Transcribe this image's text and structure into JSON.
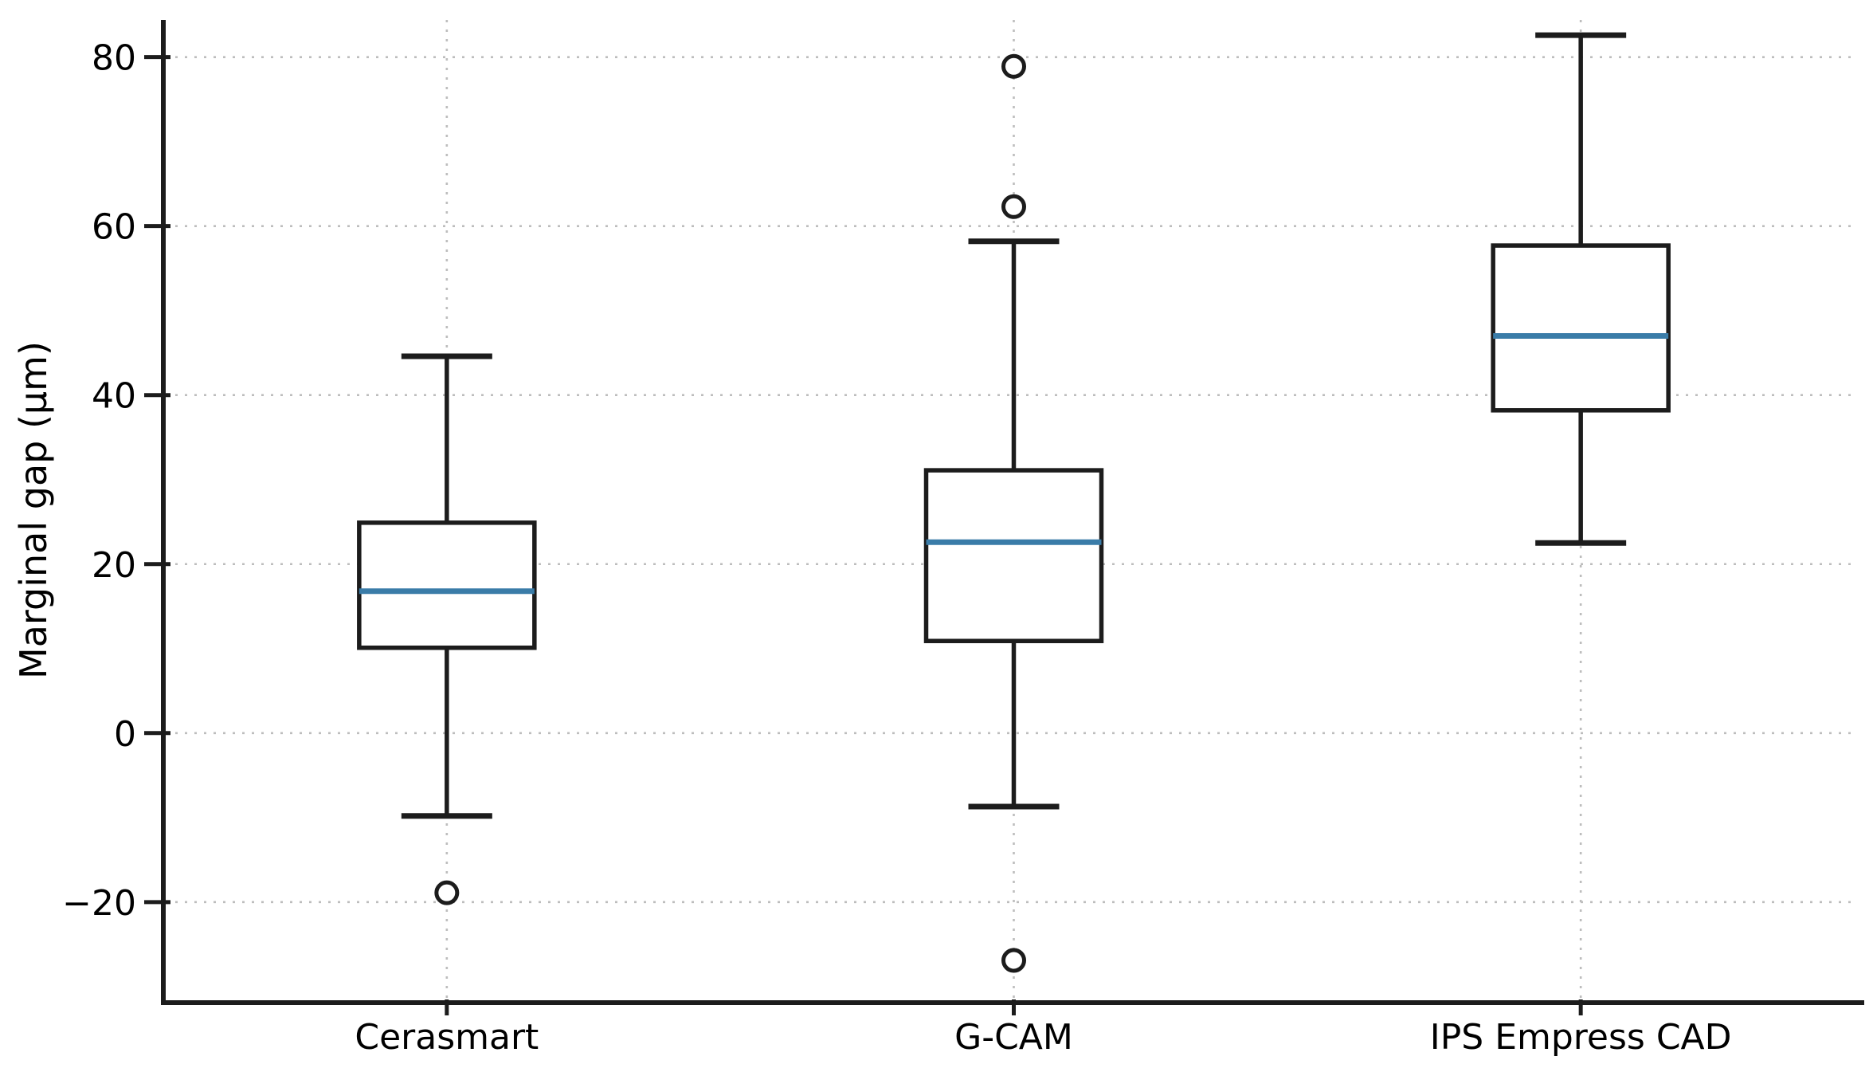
{
  "figure": {
    "background": "#ffffff"
  },
  "chart_data": {
    "type": "box",
    "title": "",
    "xlabel": "",
    "ylabel": "Marginal gap (μm)",
    "categories": [
      "Cerasmart",
      "G-CAM",
      "IPS Empress CAD"
    ],
    "series": [
      {
        "name": "Cerasmart",
        "whisker_low": -9.8,
        "q1": 10.1,
        "median": 16.8,
        "q3": 24.9,
        "whisker_high": 44.6,
        "outliers": [
          -18.9
        ]
      },
      {
        "name": "G-CAM",
        "whisker_low": -8.7,
        "q1": 10.9,
        "median": 22.6,
        "q3": 31.1,
        "whisker_high": 58.2,
        "outliers": [
          78.9,
          62.3,
          -26.9
        ]
      },
      {
        "name": "IPS Empress CAD",
        "whisker_low": 22.5,
        "q1": 38.2,
        "median": 47.0,
        "q3": 57.7,
        "whisker_high": 82.6,
        "outliers": []
      }
    ],
    "ylim": [
      -31.9,
      84.4
    ],
    "yticks": [
      80,
      60,
      40,
      20,
      0,
      -20
    ],
    "ytick_labels": [
      "80",
      "60",
      "40",
      "20",
      "0",
      "−20"
    ],
    "grid": true,
    "grid_style": "dotted",
    "legend": "none",
    "colors": {
      "box_line": "#1c1c1c",
      "median_line": "#3a7ca8",
      "grid_line": "#bdbdbd",
      "axis_line": "#1c1c1c",
      "tick_text": "#000000",
      "outlier_stroke": "#1c1c1c"
    }
  }
}
